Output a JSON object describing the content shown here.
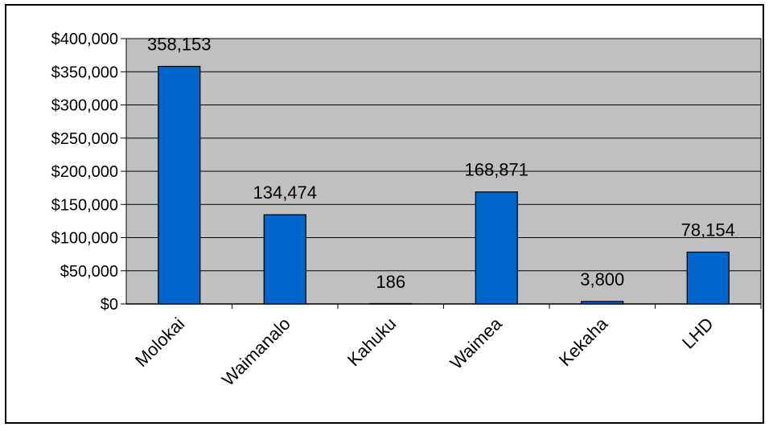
{
  "chart_data": {
    "type": "bar",
    "title": "",
    "xlabel": "",
    "ylabel": "",
    "categories": [
      "Molokai",
      "Waimanalo",
      "Kahuku",
      "Waimea",
      "Kekaha",
      "LHD"
    ],
    "values": [
      358153,
      134474,
      186,
      168871,
      3800,
      78154
    ],
    "data_labels": [
      "358,153",
      "134,474",
      "186",
      "168,871",
      "3,800",
      "78,154"
    ],
    "ylim": [
      0,
      400000
    ],
    "yticks": [
      0,
      50000,
      100000,
      150000,
      200000,
      250000,
      300000,
      350000,
      400000
    ],
    "ytick_labels": [
      "$0",
      "$50,000",
      "$100,000",
      "$150,000",
      "$200,000",
      "$250,000",
      "$300,000",
      "$350,000",
      "$400,000"
    ],
    "grid": true,
    "legend": "none",
    "colors": {
      "bar": "#0066CC",
      "plot_background": "#C0C0C0",
      "gridline": "#000000"
    }
  }
}
